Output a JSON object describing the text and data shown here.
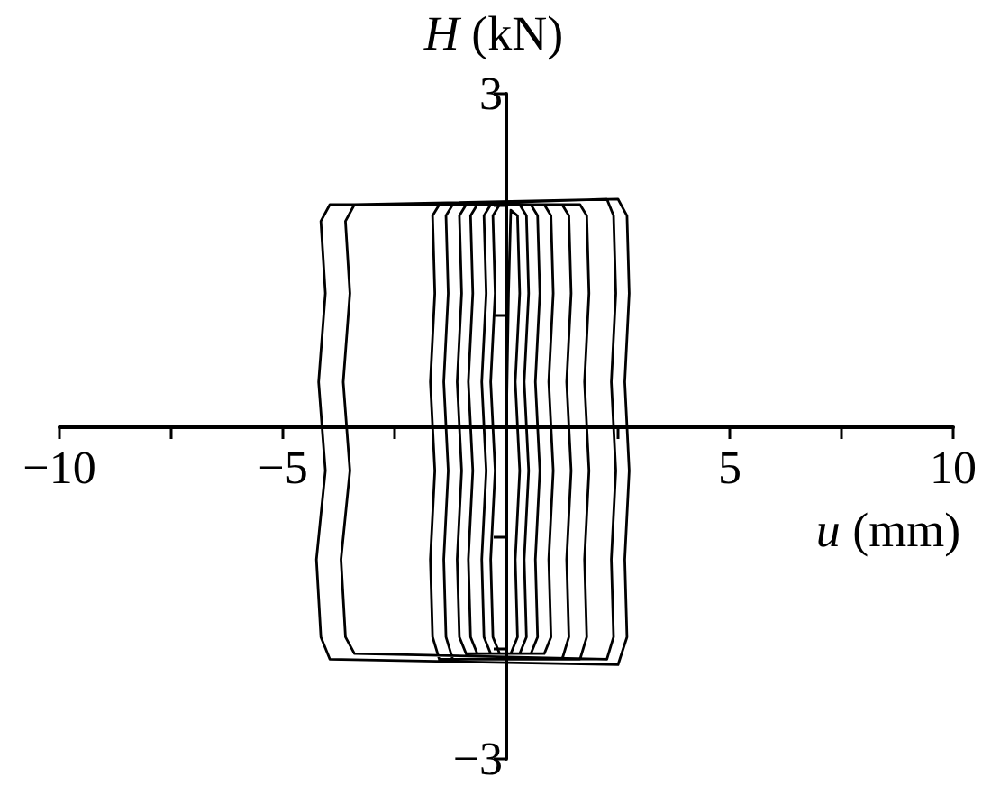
{
  "chart_data": {
    "type": "line",
    "xlabel": "u (mm)",
    "ylabel": "H (kN)",
    "xlim": [
      -10,
      10
    ],
    "ylim": [
      -3,
      3
    ],
    "xticks": [
      {
        "value": -10,
        "label": "−10"
      },
      {
        "value": -7.5,
        "label": null
      },
      {
        "value": -5,
        "label": "−5"
      },
      {
        "value": -2.5,
        "label": null
      },
      {
        "value": 2.5,
        "label": null
      },
      {
        "value": 5,
        "label": "5"
      },
      {
        "value": 7.5,
        "label": null
      },
      {
        "value": 10,
        "label": "10"
      }
    ],
    "yticks": [
      {
        "value": -3,
        "label": "−3"
      },
      {
        "value": -2,
        "label": null
      },
      {
        "value": -1,
        "label": null
      },
      {
        "value": 1,
        "label": null
      },
      {
        "value": 2,
        "label": null
      },
      {
        "value": 3,
        "label": "3"
      }
    ],
    "series": [
      {
        "color": "#000000",
        "x": [
          0,
          0.05,
          0.1,
          0.25,
          0.3,
          0.2,
          0.3,
          0.2,
          0.25,
          0.1,
          -0.15,
          -0.3,
          -0.35,
          -0.25,
          -0.35,
          -0.25,
          -0.3,
          -0.15,
          0.3,
          0.45,
          0.5,
          0.4,
          0.5,
          0.4,
          0.45,
          0.3,
          -0.35,
          -0.5,
          -0.55,
          -0.45,
          -0.55,
          -0.45,
          -0.5,
          -0.35,
          0.55,
          0.7,
          0.75,
          0.65,
          0.75,
          0.65,
          0.7,
          0.55,
          -0.65,
          -0.8,
          -0.85,
          -0.75,
          -0.85,
          -0.75,
          -0.8,
          -0.65,
          0.85,
          1.0,
          1.05,
          0.95,
          1.05,
          0.95,
          1.0,
          0.85,
          -0.9,
          -1.05,
          -1.1,
          -1.0,
          -1.1,
          -1.0,
          -1.05,
          -0.9,
          1.25,
          1.4,
          1.45,
          1.35,
          1.45,
          1.35,
          1.4,
          1.25,
          -1.2,
          -1.35,
          -1.4,
          -1.3,
          -1.4,
          -1.3,
          -1.35,
          -1.2,
          1.65,
          1.8,
          1.85,
          1.75,
          1.85,
          1.75,
          1.8,
          1.65,
          -1.5,
          -1.65,
          -1.7,
          -1.6,
          -1.7,
          -1.6,
          -1.65,
          -1.5,
          2.25,
          2.4,
          2.45,
          2.35,
          2.45,
          2.35,
          2.4,
          2.25,
          -3.4,
          -3.6,
          -3.7,
          -3.5,
          -3.65,
          -3.5,
          -3.6,
          -3.4,
          2.5,
          2.7,
          2.75,
          2.65,
          2.75,
          2.65,
          2.7,
          2.5,
          -3.95,
          -4.15,
          -4.25,
          -4.05,
          -4.2,
          -4.05,
          -4.15,
          -3.95,
          -1.0
        ],
        "values": [
          0,
          1.2,
          1.95,
          1.9,
          1.2,
          0.4,
          -0.4,
          -1.2,
          -1.9,
          -2.05,
          -2.05,
          -1.9,
          -1.2,
          -0.4,
          0.4,
          1.2,
          1.9,
          2.0,
          2.0,
          1.9,
          1.2,
          0.4,
          -0.4,
          -1.2,
          -1.9,
          -2.05,
          -2.05,
          -1.9,
          -1.2,
          -0.4,
          0.4,
          1.2,
          1.9,
          2.0,
          2.0,
          1.9,
          1.2,
          0.4,
          -0.4,
          -1.2,
          -1.9,
          -2.05,
          -2.05,
          -1.9,
          -1.2,
          -0.4,
          0.4,
          1.2,
          1.9,
          2.0,
          2.0,
          1.9,
          1.2,
          0.4,
          -0.4,
          -1.2,
          -1.9,
          -2.05,
          -2.05,
          -1.9,
          -1.2,
          -0.4,
          0.4,
          1.2,
          1.9,
          2.0,
          2.0,
          1.9,
          1.2,
          0.4,
          -0.4,
          -1.2,
          -1.9,
          -2.1,
          -2.1,
          -1.9,
          -1.2,
          -0.4,
          0.4,
          1.2,
          1.9,
          2.0,
          2.0,
          1.9,
          1.2,
          0.4,
          -0.4,
          -1.2,
          -1.9,
          -2.1,
          -2.1,
          -1.9,
          -1.2,
          -0.4,
          0.4,
          1.2,
          1.9,
          2.0,
          2.05,
          1.9,
          1.2,
          0.4,
          -0.4,
          -1.2,
          -1.9,
          -2.1,
          -2.05,
          -1.9,
          -1.2,
          -0.4,
          0.4,
          1.2,
          1.85,
          2.0,
          2.05,
          1.9,
          1.2,
          0.4,
          -0.4,
          -1.2,
          -1.9,
          -2.15,
          -2.1,
          -1.9,
          -1.2,
          -0.4,
          0.4,
          1.2,
          1.85,
          2.0,
          2.0
        ]
      }
    ]
  }
}
